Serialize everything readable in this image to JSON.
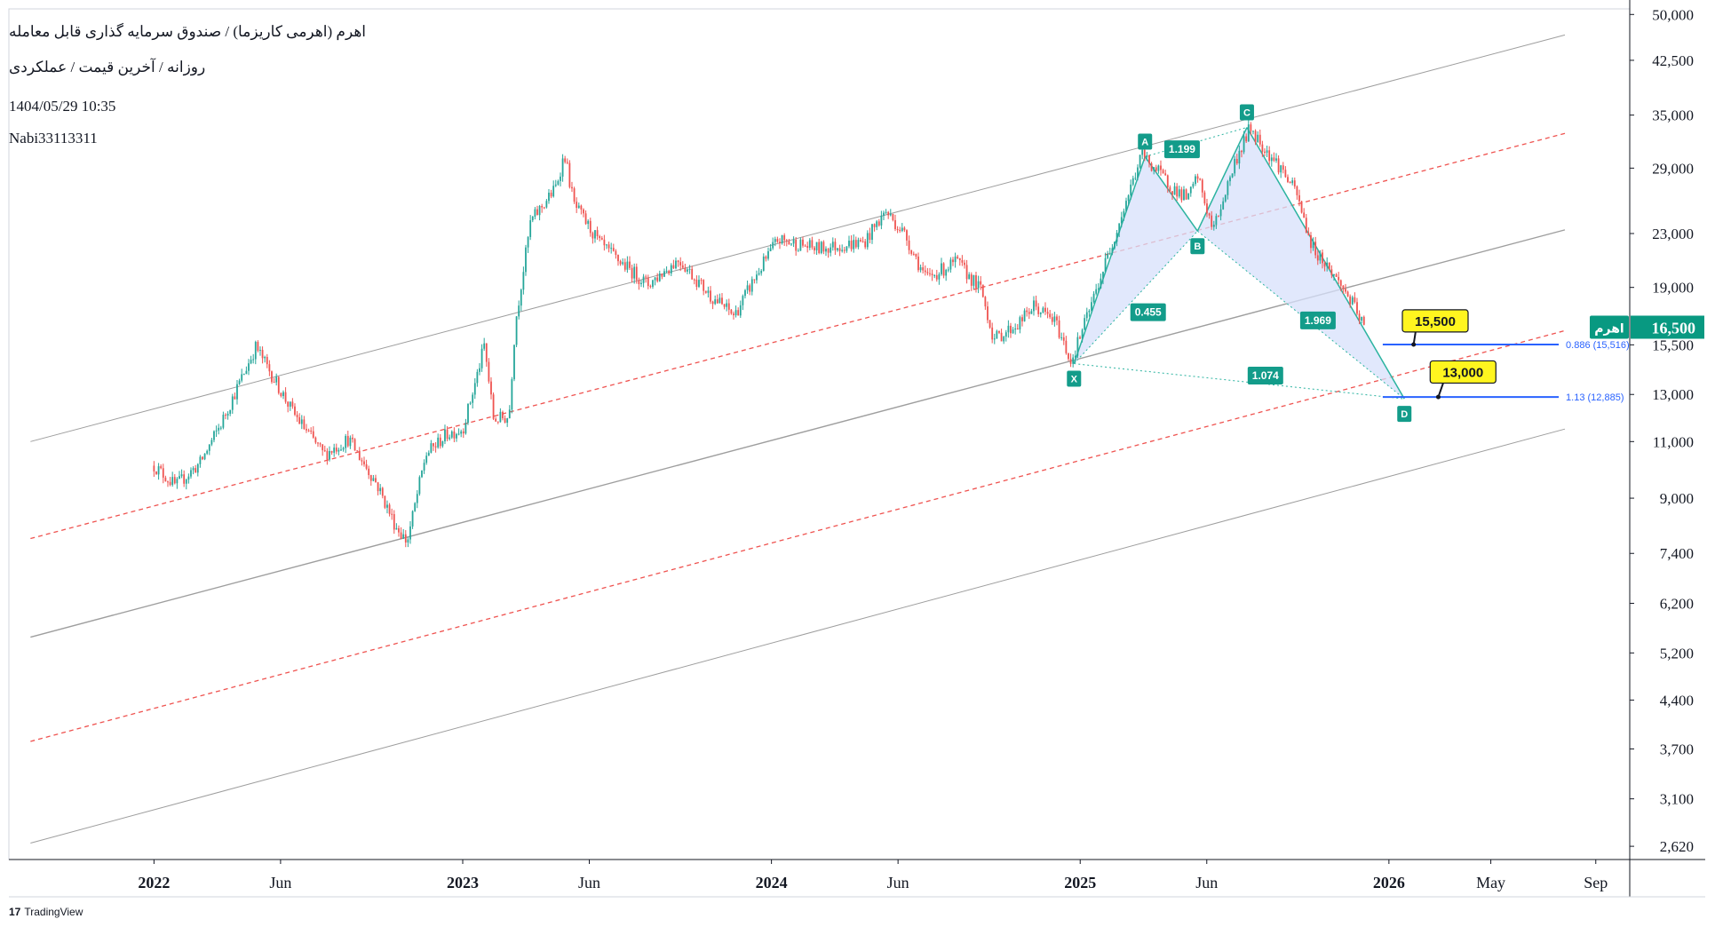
{
  "header": {
    "title": "اهرم (اهرمی کاریزما) / صندوق سرمایه گذاری قابل معامله",
    "subtitle": "روزانه / آخرین قیمت / عملکردی",
    "datetime": "1404/05/29 10:35",
    "author": "Nabi33113311"
  },
  "footer": {
    "logo_mark": "17",
    "brand": "TradingView"
  },
  "colors": {
    "up": "#26a69a",
    "down": "#ef5350",
    "pattern_fill": "#d7e0fb",
    "pattern_line": "#2bb3a0",
    "label_green": "#139c8a",
    "callout_yellow": "#fff51f",
    "level_blue": "#2962ff",
    "channel_grey": "#9e9e9e",
    "channel_red": "#ef5350",
    "price_tag": "#089981"
  },
  "chart_data": {
    "type": "candlestick",
    "y_scale": "log",
    "ylim": [
      2500,
      51000
    ],
    "y_ticks": [
      {
        "v": 50000,
        "label": "50,000"
      },
      {
        "v": 42500,
        "label": "42,500"
      },
      {
        "v": 35000,
        "label": "35,000"
      },
      {
        "v": 29000,
        "label": "29,000"
      },
      {
        "v": 23000,
        "label": "23,000"
      },
      {
        "v": 19000,
        "label": "19,000"
      },
      {
        "v": 15500,
        "label": "15,500"
      },
      {
        "v": 13000,
        "label": "13,000"
      },
      {
        "v": 11000,
        "label": "11,000"
      },
      {
        "v": 9000,
        "label": "9,000"
      },
      {
        "v": 7400,
        "label": "7,400"
      },
      {
        "v": 6200,
        "label": "6,200"
      },
      {
        "v": 5200,
        "label": "5,200"
      },
      {
        "v": 4400,
        "label": "4,400"
      },
      {
        "v": 3700,
        "label": "3,700"
      },
      {
        "v": 3100,
        "label": "3,100"
      },
      {
        "v": 2620,
        "label": "2,620"
      }
    ],
    "x_ticks": [
      {
        "t": 2022.0,
        "label": "2022",
        "bold": true
      },
      {
        "t": 2022.41,
        "label": "Jun",
        "bold": false
      },
      {
        "t": 2023.0,
        "label": "2023",
        "bold": true
      },
      {
        "t": 2023.41,
        "label": "Jun",
        "bold": false
      },
      {
        "t": 2024.0,
        "label": "2024",
        "bold": true
      },
      {
        "t": 2024.41,
        "label": "Jun",
        "bold": false
      },
      {
        "t": 2025.0,
        "label": "2025",
        "bold": true
      },
      {
        "t": 2025.41,
        "label": "Jun",
        "bold": false
      },
      {
        "t": 2026.0,
        "label": "2026",
        "bold": true
      },
      {
        "t": 2026.33,
        "label": "May",
        "bold": false
      },
      {
        "t": 2026.67,
        "label": "Sep",
        "bold": false
      }
    ],
    "xlim": [
      2021.53,
      2026.78
    ],
    "price_path": [
      [
        2022.0,
        10100
      ],
      [
        2022.07,
        9400
      ],
      [
        2022.15,
        10200
      ],
      [
        2022.22,
        11800
      ],
      [
        2022.33,
        15400
      ],
      [
        2022.45,
        12200
      ],
      [
        2022.55,
        10500
      ],
      [
        2022.63,
        11100
      ],
      [
        2022.72,
        9500
      ],
      [
        2022.78,
        8200
      ],
      [
        2022.82,
        7700
      ],
      [
        2022.88,
        10500
      ],
      [
        2022.95,
        11300
      ],
      [
        2023.0,
        11500
      ],
      [
        2023.04,
        13500
      ],
      [
        2023.07,
        15500
      ],
      [
        2023.1,
        11900
      ],
      [
        2023.15,
        12000
      ],
      [
        2023.17,
        16700
      ],
      [
        2023.22,
        24000
      ],
      [
        2023.3,
        27000
      ],
      [
        2023.33,
        30500
      ],
      [
        2023.36,
        25500
      ],
      [
        2023.45,
        22000
      ],
      [
        2023.5,
        21000
      ],
      [
        2023.6,
        19200
      ],
      [
        2023.7,
        21000
      ],
      [
        2023.8,
        18500
      ],
      [
        2023.88,
        17200
      ],
      [
        2023.95,
        19800
      ],
      [
        2024.02,
        22500
      ],
      [
        2024.15,
        21800
      ],
      [
        2024.3,
        22300
      ],
      [
        2024.37,
        24900
      ],
      [
        2024.43,
        23000
      ],
      [
        2024.5,
        19600
      ],
      [
        2024.6,
        20800
      ],
      [
        2024.68,
        18800
      ],
      [
        2024.72,
        15800
      ],
      [
        2024.8,
        16700
      ],
      [
        2024.85,
        17800
      ],
      [
        2024.92,
        16800
      ],
      [
        2024.97,
        14600
      ],
      [
        2025.02,
        17000
      ],
      [
        2025.1,
        22000
      ],
      [
        2025.2,
        30500
      ],
      [
        2025.3,
        27000
      ],
      [
        2025.35,
        26000
      ],
      [
        2025.38,
        28200
      ],
      [
        2025.43,
        23200
      ],
      [
        2025.5,
        29500
      ],
      [
        2025.55,
        33500
      ],
      [
        2025.6,
        31000
      ],
      [
        2025.65,
        29000
      ],
      [
        2025.7,
        26500
      ],
      [
        2025.75,
        22000
      ],
      [
        2025.8,
        20500
      ],
      [
        2025.85,
        19000
      ],
      [
        2025.88,
        18000
      ],
      [
        2025.92,
        16500
      ]
    ],
    "harmonic_pattern": {
      "points": [
        {
          "name": "X",
          "t": 2024.98,
          "v": 14500
        },
        {
          "name": "A",
          "t": 2025.21,
          "v": 30200
        },
        {
          "name": "B",
          "t": 2025.38,
          "v": 23200
        },
        {
          "name": "C",
          "t": 2025.54,
          "v": 33500
        },
        {
          "name": "D",
          "t": 2026.05,
          "v": 12800
        }
      ],
      "ratios": [
        {
          "label": "0.455",
          "t": 2025.22,
          "v": 17400
        },
        {
          "label": "1.199",
          "t": 2025.33,
          "v": 31000
        },
        {
          "label": "1.969",
          "t": 2025.77,
          "v": 16900
        },
        {
          "label": "1.074",
          "t": 2025.6,
          "v": 13900
        }
      ]
    },
    "levels": [
      {
        "label": "0.886 (15,516)",
        "v": 15516,
        "t_start": 2025.98,
        "t_end": 2026.55
      },
      {
        "label": "1.13 (12,885)",
        "v": 12885,
        "t_start": 2025.98,
        "t_end": 2026.55
      }
    ],
    "callouts": [
      {
        "label": "15,500",
        "t": 2026.15,
        "v": 16900,
        "anchor_t": 2026.08,
        "anchor_v": 15516
      },
      {
        "label": "13,000",
        "t": 2026.24,
        "v": 14100,
        "anchor_t": 2026.16,
        "anchor_v": 12885
      }
    ],
    "channel_lines": [
      {
        "style": "solid",
        "t1": 2021.6,
        "v1": 11000,
        "t2": 2026.57,
        "v2": 46500
      },
      {
        "style": "dashed",
        "t1": 2021.6,
        "v1": 7800,
        "t2": 2026.57,
        "v2": 32800
      },
      {
        "style": "solid",
        "t1": 2021.6,
        "v1": 5500,
        "t2": 2026.57,
        "v2": 23300
      },
      {
        "style": "dashed",
        "t1": 2021.6,
        "v1": 3800,
        "t2": 2026.57,
        "v2": 16300
      },
      {
        "style": "solid",
        "t1": 2021.6,
        "v1": 2650,
        "t2": 2026.57,
        "v2": 11500
      }
    ],
    "last_price": {
      "value": 16500,
      "label": "16,500",
      "symbol": "اهرم"
    }
  }
}
